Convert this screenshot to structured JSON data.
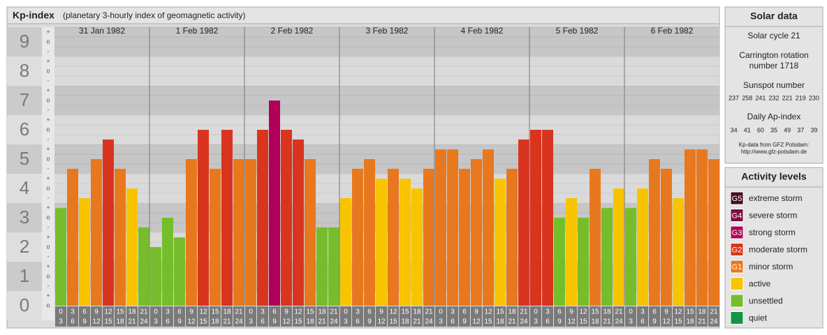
{
  "chart_data": {
    "type": "bar",
    "title": "Kp-index",
    "subtitle": "(planetary 3-hourly index of geomagnetic activity)",
    "ylim": [
      -0.5,
      9.5
    ],
    "yticks": [
      0,
      1,
      2,
      3,
      4,
      5,
      6,
      7,
      8,
      9
    ],
    "minor_labels": [
      "-",
      "o",
      "+"
    ],
    "time_labels": [
      [
        "0",
        "3"
      ],
      [
        "3",
        "6"
      ],
      [
        "6",
        "9"
      ],
      [
        "9",
        "12"
      ],
      [
        "12",
        "15"
      ],
      [
        "15",
        "18"
      ],
      [
        "18",
        "21"
      ],
      [
        "21",
        "24"
      ]
    ],
    "days": [
      {
        "label": "31 Jan 1982",
        "values": [
          3.33,
          4.67,
          3.67,
          5,
          5.67,
          4.67,
          4,
          2.67
        ],
        "colors": [
          "#76bd2b",
          "#e8781e",
          "#f8c400",
          "#e8781e",
          "#d9351e",
          "#e8781e",
          "#f8c400",
          "#76bd2b"
        ]
      },
      {
        "label": "1 Feb 1982",
        "values": [
          2,
          3,
          2.33,
          5,
          6,
          4.67,
          6,
          5
        ],
        "colors": [
          "#76bd2b",
          "#76bd2b",
          "#76bd2b",
          "#e8781e",
          "#d9351e",
          "#e8781e",
          "#d9351e",
          "#e8781e"
        ]
      },
      {
        "label": "2 Feb 1982",
        "values": [
          5,
          6,
          7,
          6,
          5.67,
          5,
          2.67,
          2.67
        ],
        "colors": [
          "#e8781e",
          "#d9351e",
          "#b0005a",
          "#d9351e",
          "#d9351e",
          "#e8781e",
          "#76bd2b",
          "#76bd2b"
        ]
      },
      {
        "label": "3 Feb 1982",
        "values": [
          3.67,
          4.67,
          5,
          4.33,
          4.67,
          4.33,
          4,
          4.67
        ],
        "colors": [
          "#f8c400",
          "#e8781e",
          "#e8781e",
          "#f8c400",
          "#e8781e",
          "#f8c400",
          "#f8c400",
          "#e8781e"
        ]
      },
      {
        "label": "4 Feb 1982",
        "values": [
          5.33,
          5.33,
          4.67,
          5,
          5.33,
          4.33,
          4.67,
          5.67
        ],
        "colors": [
          "#e8781e",
          "#e8781e",
          "#e8781e",
          "#e8781e",
          "#e8781e",
          "#f8c400",
          "#e8781e",
          "#d9351e"
        ]
      },
      {
        "label": "5 Feb 1982",
        "values": [
          6,
          6,
          3,
          3.67,
          3,
          4.67,
          3.33,
          4
        ],
        "colors": [
          "#d9351e",
          "#d9351e",
          "#76bd2b",
          "#f8c400",
          "#76bd2b",
          "#e8781e",
          "#76bd2b",
          "#f8c400"
        ]
      },
      {
        "label": "6 Feb 1982",
        "values": [
          3.33,
          4,
          5,
          4.67,
          3.67,
          5.33,
          5.33,
          5
        ],
        "colors": [
          "#76bd2b",
          "#f8c400",
          "#e8781e",
          "#e8781e",
          "#f8c400",
          "#e8781e",
          "#e8781e",
          "#e8781e"
        ]
      }
    ]
  },
  "solar_data": {
    "title": "Solar data",
    "cycle": "Solar cycle 21",
    "carrington": [
      "Carrington rotation",
      "number 1718"
    ],
    "sunspot_title": "Sunspot number",
    "sunspot": [
      237,
      258,
      241,
      232,
      221,
      219,
      230
    ],
    "ap_title": "Daily Ap-index",
    "ap": [
      34,
      41,
      60,
      35,
      49,
      37,
      39
    ],
    "source": [
      "Kp-data from GFZ Potsdam:",
      "http://www.gfz-potsdam.de"
    ]
  },
  "activity_levels": {
    "title": "Activity levels",
    "items": [
      {
        "badge": "G5",
        "label": "extreme storm",
        "color": "#4a0a24"
      },
      {
        "badge": "G4",
        "label": "severe storm",
        "color": "#7c0c3e"
      },
      {
        "badge": "G3",
        "label": "strong storm",
        "color": "#b0005a"
      },
      {
        "badge": "G2",
        "label": "moderate storm",
        "color": "#d9351e"
      },
      {
        "badge": "G1",
        "label": "minor storm",
        "color": "#e8781e"
      },
      {
        "label": "active",
        "color": "#f8c400"
      },
      {
        "label": "unsettled",
        "color": "#76bd2b"
      },
      {
        "label": "quiet",
        "color": "#159447"
      }
    ]
  }
}
